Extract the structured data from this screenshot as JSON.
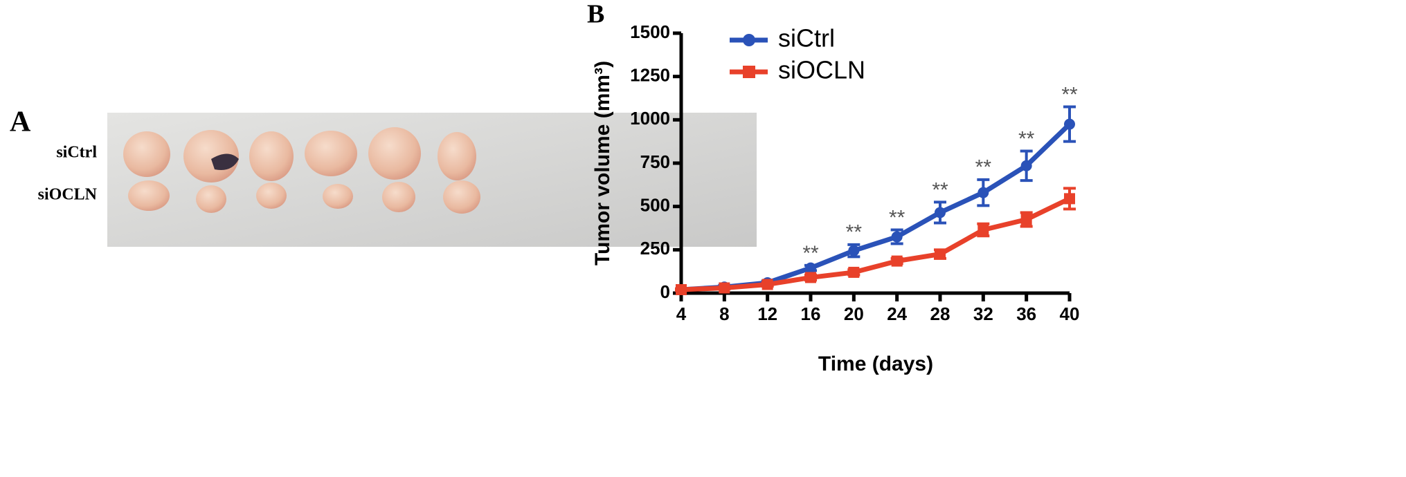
{
  "panel_a": {
    "label": "A",
    "rows": [
      "siCtrl",
      "siOCLN"
    ]
  },
  "chart_data": {
    "type": "line",
    "panel_label": "B",
    "x_label": "Time (days)",
    "y_label": "Tumor volume (mm³)",
    "x": [
      4,
      8,
      12,
      16,
      20,
      24,
      28,
      32,
      36,
      40
    ],
    "series": [
      {
        "name": "siCtrl",
        "color": "#2a52b8",
        "marker": "circle",
        "values": [
          20,
          35,
          60,
          145,
          245,
          325,
          465,
          580,
          735,
          975
        ],
        "errors": [
          5,
          10,
          10,
          15,
          35,
          40,
          60,
          75,
          85,
          100
        ]
      },
      {
        "name": "siOCLN",
        "color": "#e8412a",
        "marker": "square",
        "values": [
          20,
          30,
          50,
          90,
          120,
          185,
          225,
          365,
          425,
          545
        ],
        "errors": [
          5,
          5,
          10,
          15,
          15,
          15,
          25,
          35,
          40,
          60
        ]
      }
    ],
    "annotations": [
      {
        "x": 16,
        "text": "**"
      },
      {
        "x": 20,
        "text": "**"
      },
      {
        "x": 24,
        "text": "**"
      },
      {
        "x": 28,
        "text": "**"
      },
      {
        "x": 32,
        "text": "**"
      },
      {
        "x": 36,
        "text": "**"
      },
      {
        "x": 40,
        "text": "**"
      }
    ],
    "xlim": [
      4,
      40
    ],
    "xticks": [
      4,
      8,
      12,
      16,
      20,
      24,
      28,
      32,
      36,
      40
    ],
    "ylim": [
      0,
      1500
    ],
    "yticks": [
      0,
      250,
      500,
      750,
      1000,
      1250,
      1500
    ],
    "grid": false,
    "legend": "upper left"
  }
}
